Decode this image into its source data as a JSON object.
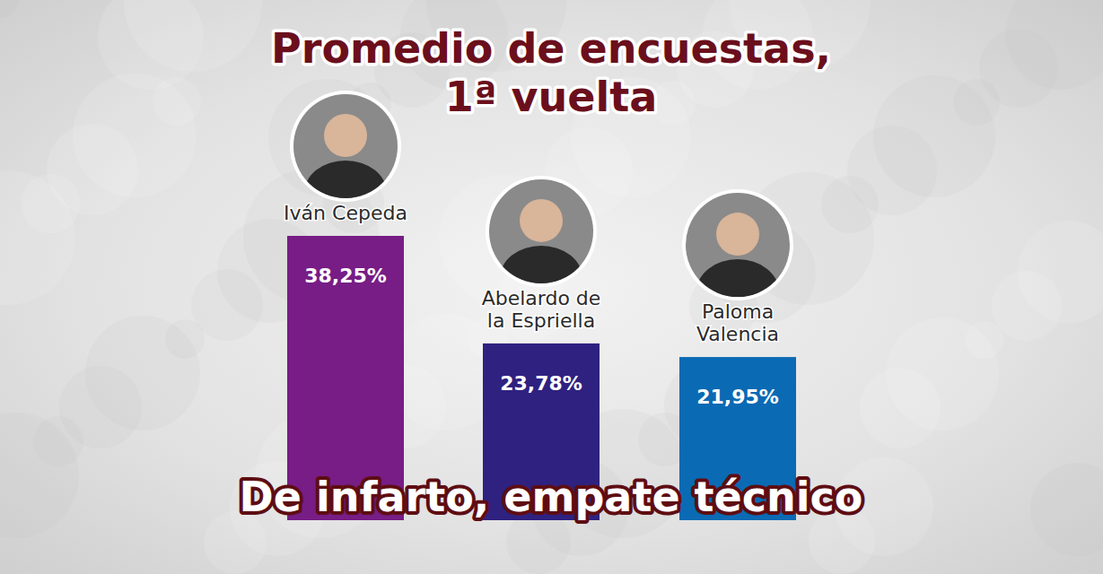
{
  "chart_data": {
    "type": "bar",
    "title": "Promedio de encuestas, 1ª vuelta",
    "subtitle": "De infarto, empate técnico",
    "categories": [
      "Iván Cepeda",
      "Abelardo de la Espriella",
      "Paloma Valencia"
    ],
    "values": [
      38.25,
      23.78,
      21.95
    ],
    "value_labels": [
      "38,25%",
      "23,78%",
      "21,95%"
    ],
    "colors": [
      "#771d85",
      "#2f2180",
      "#0b6ab4"
    ],
    "ylim": [
      0,
      40
    ],
    "grid": false,
    "tick_labels": false,
    "data_labels": true
  }
}
